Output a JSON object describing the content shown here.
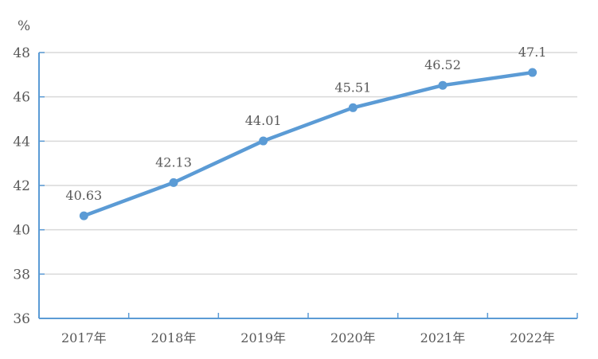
{
  "chart_data": {
    "type": "line",
    "title": "",
    "xlabel": "",
    "ylabel": "%",
    "categories": [
      "2017年",
      "2018年",
      "2019年",
      "2020年",
      "2021年",
      "2022年"
    ],
    "series": [
      {
        "values": [
          40.63,
          42.13,
          44.01,
          45.51,
          46.52,
          47.1
        ]
      }
    ],
    "data_labels": [
      "40.63",
      "42.13",
      "44.01",
      "45.51",
      "46.52",
      "47.1"
    ],
    "ylim": [
      36,
      48
    ],
    "yticks": [
      "36",
      "38",
      "40",
      "42",
      "44",
      "46",
      "48"
    ],
    "grid": true,
    "legend": "none",
    "colors": {
      "line": "#5b9bd5",
      "axis": "#5b9bd5",
      "grid": "#d9d9d9",
      "text": "#595959"
    }
  }
}
